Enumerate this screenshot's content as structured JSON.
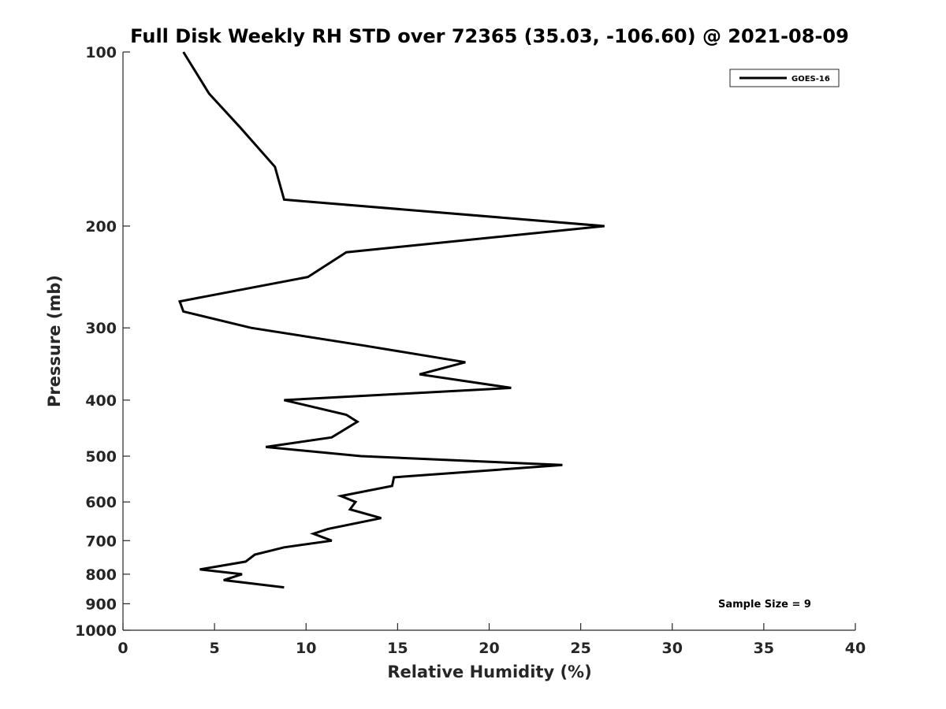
{
  "chart_data": {
    "type": "line",
    "title": "Full Disk Weekly RH STD over 72365 (35.03, -106.60) @ 2021-08-09",
    "xlabel": "Relative Humidity (%)",
    "ylabel": "Pressure (mb)",
    "xlim": [
      0,
      40
    ],
    "ylim": [
      100,
      1000
    ],
    "y_scale": "log",
    "y_reversed": true,
    "grid": false,
    "legend_position": "top-right",
    "x_ticks": [
      "0",
      "5",
      "10",
      "15",
      "20",
      "25",
      "30",
      "35",
      "40"
    ],
    "y_ticks": [
      "100",
      "200",
      "300",
      "400",
      "500",
      "600",
      "700",
      "800",
      "900",
      "1000"
    ],
    "annotation": "Sample Size = 9",
    "series": [
      {
        "name": "GOES-16",
        "color": "#000000",
        "points": [
          [
            3.3,
            100
          ],
          [
            4.7,
            118
          ],
          [
            6.4,
            135
          ],
          [
            8.3,
            158
          ],
          [
            8.8,
            180
          ],
          [
            26.3,
            200
          ],
          [
            12.2,
            222
          ],
          [
            10.1,
            245
          ],
          [
            3.1,
            270
          ],
          [
            3.3,
            281
          ],
          [
            7.0,
            300
          ],
          [
            13.2,
            322
          ],
          [
            18.7,
            344
          ],
          [
            16.2,
            361
          ],
          [
            21.2,
            381
          ],
          [
            8.8,
            400
          ],
          [
            12.2,
            424
          ],
          [
            12.8,
            436
          ],
          [
            11.4,
            464
          ],
          [
            7.8,
            482
          ],
          [
            13.0,
            500
          ],
          [
            24.0,
            518
          ],
          [
            14.8,
            544
          ],
          [
            14.7,
            563
          ],
          [
            11.9,
            586
          ],
          [
            12.7,
            600
          ],
          [
            12.4,
            618
          ],
          [
            14.1,
            640
          ],
          [
            11.2,
            668
          ],
          [
            10.4,
            681
          ],
          [
            11.4,
            700
          ],
          [
            8.8,
            719
          ],
          [
            7.2,
            740
          ],
          [
            6.7,
            761
          ],
          [
            4.2,
            785
          ],
          [
            6.5,
            800
          ],
          [
            5.5,
            819
          ],
          [
            8.8,
            843
          ]
        ]
      }
    ]
  }
}
